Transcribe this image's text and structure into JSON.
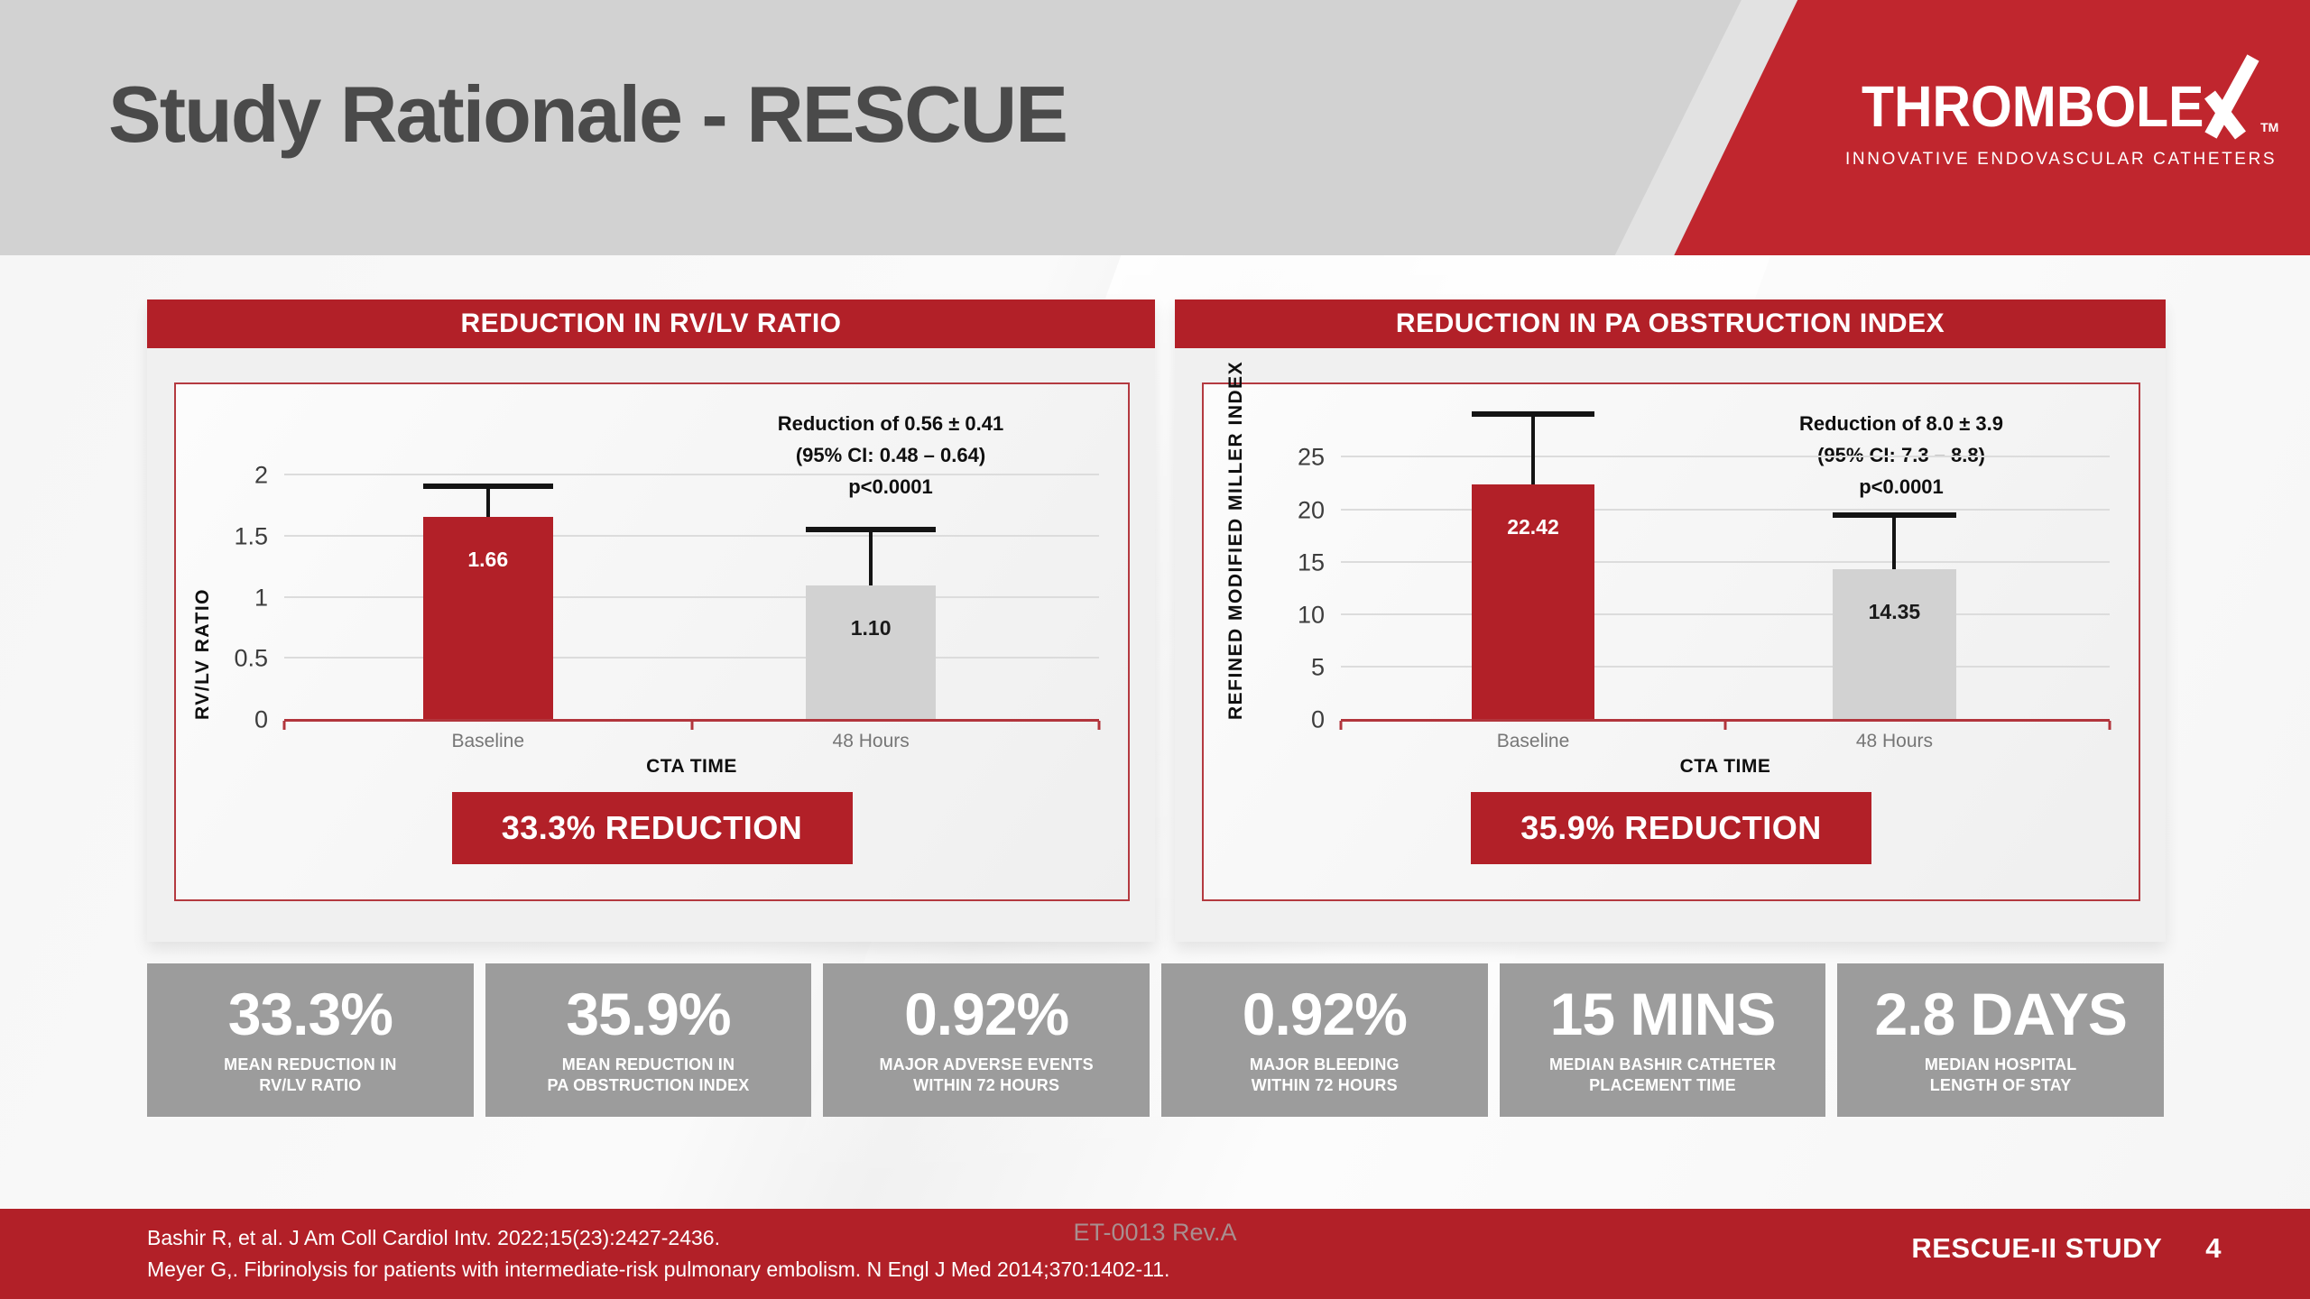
{
  "colors": {
    "brand_red": "#b22028",
    "logo_red": "#c0262e",
    "header_band_gray": "#d2d2d2",
    "title_gray": "#4a4a4a",
    "stat_box_gray": "#9c9c9c",
    "bar_red": "#b22028",
    "bar_gray": "#d2d2d2",
    "gridline_gray": "#dcdcdc",
    "axis_red": "#b2353c",
    "error_bar_black": "#141414"
  },
  "header": {
    "title": "Study Rationale - RESCUE"
  },
  "logo": {
    "brand_prefix": "THROMBOLE",
    "brand_x": "X",
    "trademark": "TM",
    "tagline": "INNOVATIVE ENDOVASCULAR CATHETERS"
  },
  "chart_data": [
    {
      "type": "bar",
      "title": "REDUCTION IN RV/LV RATIO",
      "categories": [
        "Baseline",
        "48 Hours"
      ],
      "values": [
        1.66,
        1.1
      ],
      "bar_labels": [
        "1.66",
        "1.10"
      ],
      "error_bar_tops": [
        1.89,
        1.54
      ],
      "bar_colors": [
        "#b22028",
        "#d2d2d2"
      ],
      "bar_label_colors": [
        "#ffffff",
        "#1a1a1a"
      ],
      "yticks": [
        0,
        0.5,
        1,
        1.5,
        2
      ],
      "ytick_labels": [
        "0",
        "0.5",
        "1",
        "1.5",
        "2"
      ],
      "ylim": [
        0,
        2.75
      ],
      "ylabel": "RV/LV RATIO",
      "xlabel": "CTA TIME",
      "grid": true,
      "legend": false,
      "annotation_lines": [
        "Reduction of 0.56 ±  0.41",
        "(95% CI: 0.48 – 0.64)",
        "p<0.0001"
      ],
      "reduction_banner": "33.3% REDUCTION"
    },
    {
      "type": "bar",
      "title": "REDUCTION IN PA OBSTRUCTION INDEX",
      "categories": [
        "Baseline",
        "48 Hours"
      ],
      "values": [
        22.42,
        14.35
      ],
      "bar_labels": [
        "22.42",
        "14.35"
      ],
      "error_bar_tops": [
        28.9,
        19.3
      ],
      "bar_colors": [
        "#b22028",
        "#d2d2d2"
      ],
      "bar_label_colors": [
        "#ffffff",
        "#1a1a1a"
      ],
      "yticks": [
        0,
        5,
        10,
        15,
        20,
        25
      ],
      "ytick_labels": [
        "0",
        "5",
        "10",
        "15",
        "20",
        "25"
      ],
      "ylim": [
        0,
        32
      ],
      "ylabel": "REFINED MODIFIED MILLER INDEX",
      "xlabel": "CTA TIME",
      "grid": true,
      "legend": false,
      "annotation_lines": [
        "Reduction of 8.0 ±  3.9",
        "(95% CI: 7.3 – 8.8)",
        "p<0.0001"
      ],
      "reduction_banner": "35.9% REDUCTION"
    }
  ],
  "stats": [
    {
      "value": "33.3%",
      "label_line1": "MEAN REDUCTION IN",
      "label_line2": "RV/LV RATIO"
    },
    {
      "value": "35.9%",
      "label_line1": "MEAN REDUCTION IN",
      "label_line2": "PA OBSTRUCTION INDEX"
    },
    {
      "value": "0.92%",
      "label_line1": "MAJOR ADVERSE EVENTS",
      "label_line2": "WITHIN 72 HOURS"
    },
    {
      "value": "0.92%",
      "label_line1": "MAJOR BLEEDING",
      "label_line2": "WITHIN 72 HOURS"
    },
    {
      "value": "15 MINS",
      "label_line1": "MEDIAN BASHIR CATHETER",
      "label_line2": "PLACEMENT TIME"
    },
    {
      "value": "2.8 DAYS",
      "label_line1": "MEDIAN HOSPITAL",
      "label_line2": "LENGTH OF STAY"
    }
  ],
  "footer": {
    "citation_line1": "Bashir R, et al. J Am Coll Cardiol Intv. 2022;15(23):2427-2436.",
    "citation_line2": "Meyer G,. Fibrinolysis for patients with intermediate-risk pulmonary embolism. N Engl J Med 2014;370:1402-11.",
    "doc_id": "ET-0013 Rev.A",
    "study_label": "RESCUE-II STUDY",
    "page_number": "4"
  }
}
